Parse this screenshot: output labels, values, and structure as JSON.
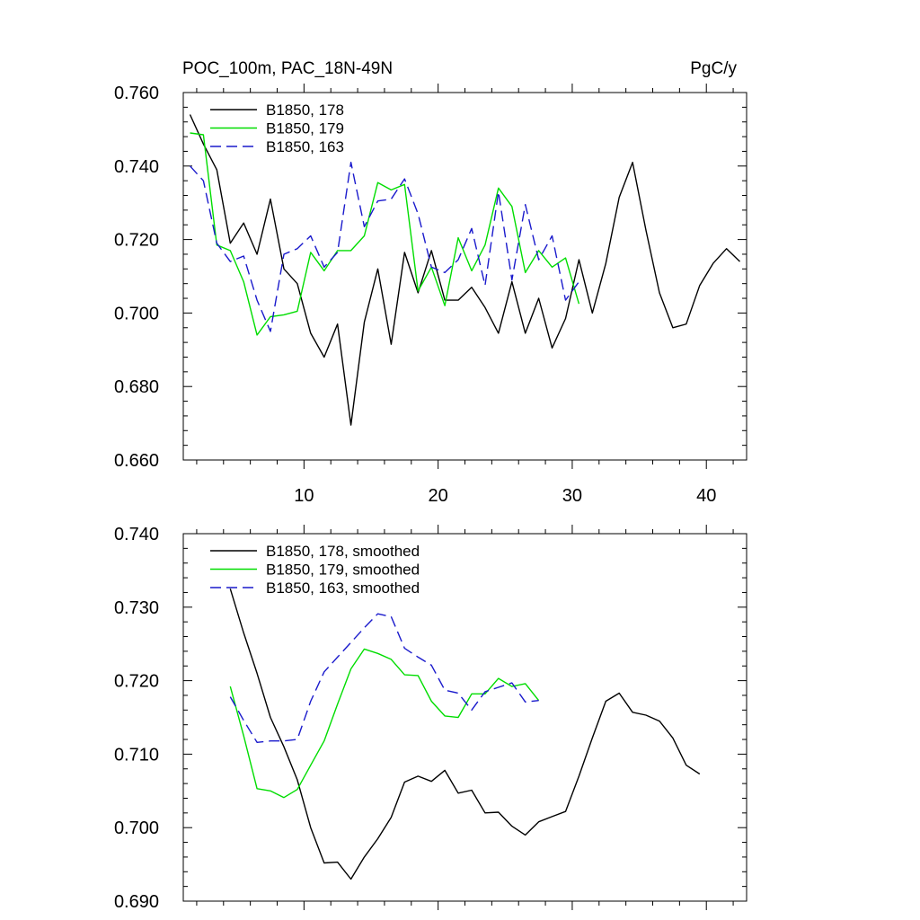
{
  "chart_data": [
    {
      "type": "line",
      "title_left": "POC_100m, PAC_18N-49N",
      "title_right": "PgC/y",
      "xlim": [
        1,
        43
      ],
      "ylim": [
        0.66,
        0.76
      ],
      "xticks": [
        10,
        20,
        30,
        40
      ],
      "xtick_labels": [
        "10",
        "20",
        "30",
        "40"
      ],
      "yticks": [
        0.66,
        0.68,
        0.7,
        0.72,
        0.74,
        0.76
      ],
      "ytick_labels": [
        "0.660",
        "0.680",
        "0.700",
        "0.720",
        "0.740",
        "0.760"
      ],
      "legend_position": "top-left",
      "series": [
        {
          "name": "B1850, 178",
          "color": "#000000",
          "dash": "solid",
          "x": [
            1.5,
            2.5,
            3.5,
            4.5,
            5.5,
            6.5,
            7.5,
            8.5,
            9.5,
            10.5,
            11.5,
            12.5,
            13.5,
            14.5,
            15.5,
            16.5,
            17.5,
            18.5,
            19.5,
            20.5,
            21.5,
            22.5,
            23.5,
            24.5,
            25.5,
            26.5,
            27.5,
            28.5,
            29.5,
            30.5,
            31.5,
            32.5,
            33.5,
            34.5,
            35.5,
            36.5,
            37.5,
            38.5,
            39.5,
            40.5,
            41.5,
            42.5
          ],
          "values": [
            0.754,
            0.746,
            0.739,
            0.719,
            0.7245,
            0.716,
            0.731,
            0.712,
            0.708,
            0.6945,
            0.688,
            0.697,
            0.6695,
            0.6975,
            0.712,
            0.6915,
            0.7165,
            0.7055,
            0.717,
            0.7035,
            0.7035,
            0.707,
            0.7015,
            0.6945,
            0.7085,
            0.6945,
            0.704,
            0.6905,
            0.6985,
            0.7145,
            0.7,
            0.7135,
            0.7315,
            0.741,
            0.7225,
            0.7055,
            0.696,
            0.697,
            0.7075,
            0.7135,
            0.7175,
            0.714
          ]
        },
        {
          "name": "B1850, 179",
          "color": "#00dd00",
          "dash": "solid",
          "x": [
            1.5,
            2.5,
            3.5,
            4.5,
            5.5,
            6.5,
            7.5,
            8.5,
            9.5,
            10.5,
            11.5,
            12.5,
            13.5,
            14.5,
            15.5,
            16.5,
            17.5,
            18.5,
            19.5,
            20.5,
            21.5,
            22.5,
            23.5,
            24.5,
            25.5,
            26.5,
            27.5,
            28.5,
            29.5,
            30.5
          ],
          "values": [
            0.749,
            0.7485,
            0.7185,
            0.717,
            0.7085,
            0.694,
            0.699,
            0.6995,
            0.7005,
            0.7165,
            0.7115,
            0.717,
            0.717,
            0.721,
            0.7355,
            0.7335,
            0.735,
            0.706,
            0.7125,
            0.702,
            0.7205,
            0.7115,
            0.7185,
            0.734,
            0.729,
            0.711,
            0.717,
            0.7125,
            0.715,
            0.7025
          ]
        },
        {
          "name": "B1850, 163",
          "color": "#1a1acc",
          "dash": "dashed",
          "x": [
            1.5,
            2.5,
            3.5,
            4.5,
            5.5,
            6.5,
            7.5,
            8.5,
            9.5,
            10.5,
            11.5,
            12.5,
            13.5,
            14.5,
            15.5,
            16.5,
            17.5,
            18.5,
            19.5,
            20.5,
            21.5,
            22.5,
            23.5,
            24.5,
            25.5,
            26.5,
            27.5,
            28.5,
            29.5,
            30.5
          ],
          "values": [
            0.74,
            0.736,
            0.719,
            0.714,
            0.7155,
            0.7035,
            0.695,
            0.716,
            0.7175,
            0.721,
            0.7125,
            0.7165,
            0.741,
            0.7235,
            0.7305,
            0.731,
            0.7365,
            0.727,
            0.7125,
            0.711,
            0.7145,
            0.723,
            0.7075,
            0.733,
            0.709,
            0.7295,
            0.7145,
            0.721,
            0.7035,
            0.7085
          ]
        }
      ]
    },
    {
      "type": "line",
      "xlim": [
        1,
        43
      ],
      "ylim": [
        0.69,
        0.74
      ],
      "xticks": [
        10,
        20,
        30,
        40
      ],
      "yticks": [
        0.69,
        0.7,
        0.71,
        0.72,
        0.73,
        0.74
      ],
      "ytick_labels": [
        "0.690",
        "0.700",
        "0.710",
        "0.720",
        "0.730",
        "0.740"
      ],
      "legend_position": "top-left",
      "series": [
        {
          "name": "B1850, 178, smoothed",
          "color": "#000000",
          "dash": "solid",
          "x": [
            4.5,
            5.5,
            6.5,
            7.5,
            8.5,
            9.5,
            10.5,
            11.5,
            12.5,
            13.5,
            14.5,
            15.5,
            16.5,
            17.5,
            18.5,
            19.5,
            20.5,
            21.5,
            22.5,
            23.5,
            24.5,
            25.5,
            26.5,
            27.5,
            28.5,
            29.5,
            30.5,
            31.5,
            32.5,
            33.5,
            34.5,
            35.5,
            36.5,
            37.5,
            38.5,
            39.5
          ],
          "values": [
            0.7325,
            0.7265,
            0.721,
            0.715,
            0.711,
            0.7065,
            0.7,
            0.6952,
            0.6953,
            0.693,
            0.696,
            0.6985,
            0.7014,
            0.7062,
            0.707,
            0.7063,
            0.7078,
            0.7047,
            0.7051,
            0.702,
            0.7021,
            0.7002,
            0.699,
            0.7008,
            0.7015,
            0.7022,
            0.707,
            0.7122,
            0.7172,
            0.7183,
            0.7157,
            0.7153,
            0.7145,
            0.7122,
            0.7085,
            0.7073
          ]
        },
        {
          "name": "B1850, 179, smoothed",
          "color": "#00dd00",
          "dash": "solid",
          "x": [
            4.5,
            5.5,
            6.5,
            7.5,
            8.5,
            9.5,
            10.5,
            11.5,
            12.5,
            13.5,
            14.5,
            15.5,
            16.5,
            17.5,
            18.5,
            19.5,
            20.5,
            21.5,
            22.5,
            23.5,
            24.5,
            25.5,
            26.5,
            27.5
          ],
          "values": [
            0.7192,
            0.7125,
            0.7053,
            0.705,
            0.7041,
            0.7052,
            0.7085,
            0.7118,
            0.7168,
            0.7216,
            0.7243,
            0.7237,
            0.7229,
            0.7208,
            0.7207,
            0.7172,
            0.7152,
            0.715,
            0.7182,
            0.7182,
            0.7203,
            0.7192,
            0.7196,
            0.7173
          ]
        },
        {
          "name": "B1850, 163, smoothed",
          "color": "#1a1acc",
          "dash": "dashed",
          "x": [
            4.5,
            5.5,
            6.5,
            7.5,
            8.5,
            9.5,
            10.5,
            11.5,
            12.5,
            13.5,
            14.5,
            15.5,
            16.5,
            17.5,
            18.5,
            19.5,
            20.5,
            21.5,
            22.5,
            23.5,
            24.5,
            25.5,
            26.5,
            27.5
          ],
          "values": [
            0.7178,
            0.7146,
            0.7116,
            0.7118,
            0.7118,
            0.712,
            0.7172,
            0.7212,
            0.7232,
            0.7252,
            0.7272,
            0.7291,
            0.7287,
            0.7244,
            0.7232,
            0.7221,
            0.7187,
            0.7183,
            0.716,
            0.7185,
            0.7191,
            0.7197,
            0.7171,
            0.7173
          ]
        }
      ]
    }
  ]
}
